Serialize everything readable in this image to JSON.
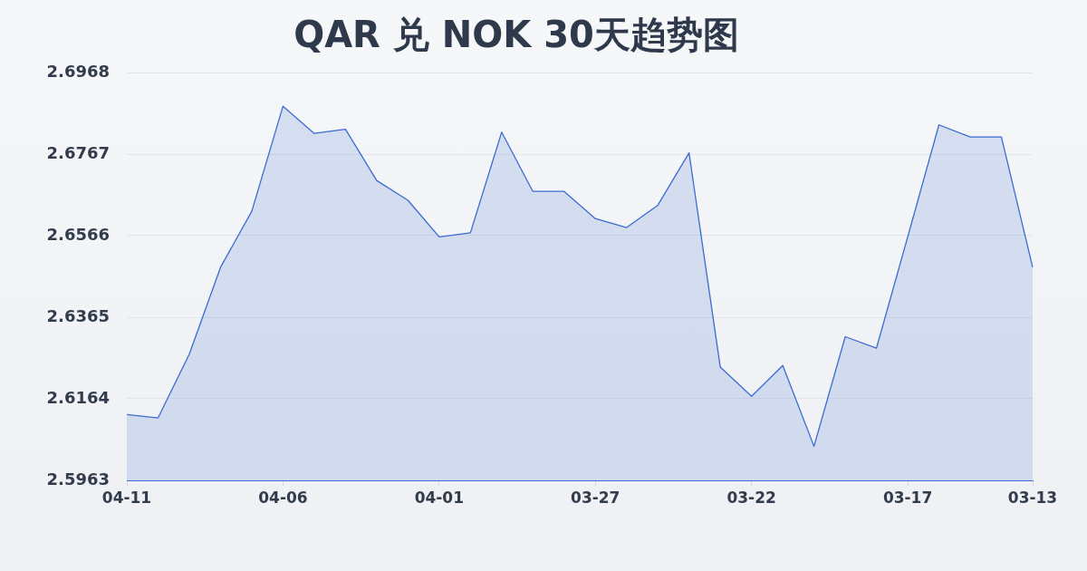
{
  "chart_data": {
    "type": "area",
    "title": "QAR 兑 NOK 30天趋势图",
    "categories": [
      "04-11",
      null,
      null,
      null,
      null,
      "04-06",
      null,
      null,
      null,
      null,
      "04-01",
      null,
      null,
      null,
      null,
      "03-27",
      null,
      null,
      null,
      null,
      "03-22",
      null,
      null,
      null,
      null,
      "03-17",
      null,
      null,
      null,
      "03-13"
    ],
    "series": [
      {
        "color": "#3a6bd1",
        "values": [
          2.6125,
          2.6117,
          2.6274,
          2.6488,
          2.6626,
          2.6885,
          2.6818,
          2.6828,
          2.6702,
          2.6653,
          2.6563,
          2.6573,
          2.6821,
          2.6675,
          2.6675,
          2.6608,
          2.6586,
          2.6641,
          2.677,
          2.6242,
          2.617,
          2.6246,
          2.6047,
          2.6317,
          2.6289,
          2.6563,
          2.6839,
          2.6809,
          2.6809,
          2.6488
        ]
      }
    ],
    "ylim": [
      2.5963,
      2.6968
    ],
    "yticks": [
      2.5963,
      2.6164,
      2.6365,
      2.6566,
      2.6767,
      2.6968
    ],
    "grid": "y",
    "marker": "none",
    "line_style": "solid"
  }
}
